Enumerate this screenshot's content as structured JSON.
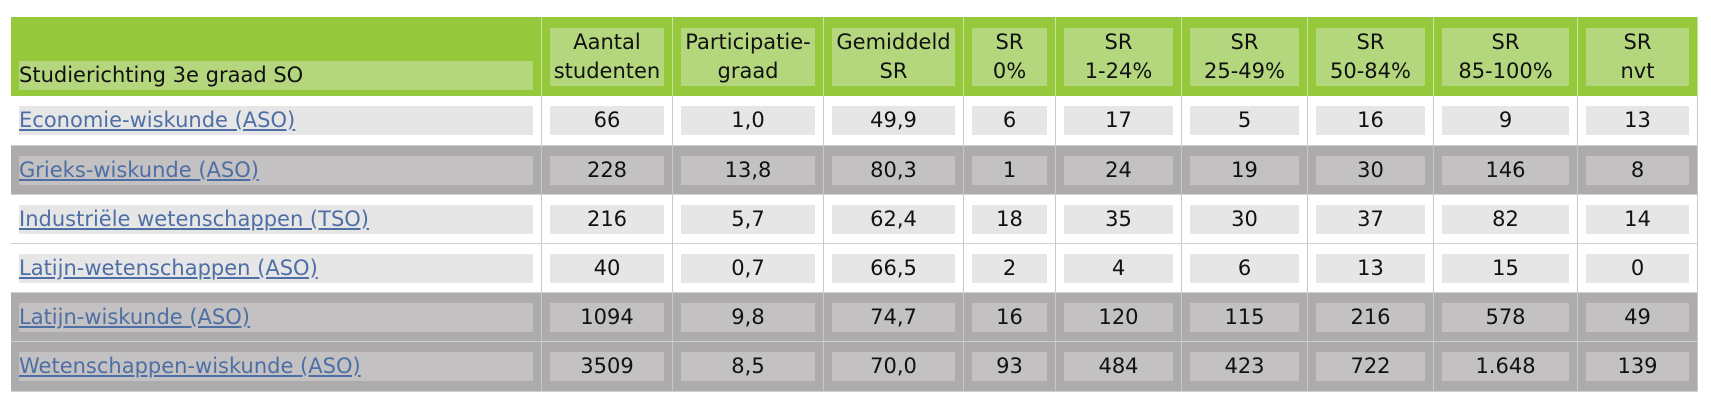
{
  "table": {
    "header": [
      [
        "Studierichting 3e graad SO"
      ],
      [
        "Aantal",
        "studenten"
      ],
      [
        "Participatie-",
        "graad"
      ],
      [
        "Gemiddeld",
        "SR"
      ],
      [
        "SR",
        "0%"
      ],
      [
        "SR",
        "1-24%"
      ],
      [
        "SR",
        "25-49%"
      ],
      [
        "SR",
        "50-84%"
      ],
      [
        "SR",
        "85-100%"
      ],
      [
        "SR",
        "nvt"
      ]
    ],
    "rows": [
      [
        "Economie-wiskunde (ASO)",
        "66",
        "1,0",
        "49,9",
        "6",
        "17",
        "5",
        "16",
        "9",
        "13"
      ],
      [
        "Grieks-wiskunde (ASO)",
        "228",
        "13,8",
        "80,3",
        "1",
        "24",
        "19",
        "30",
        "146",
        "8"
      ],
      [
        "Industriële wetenschappen (TSO)",
        "216",
        "5,7",
        "62,4",
        "18",
        "35",
        "30",
        "37",
        "82",
        "14"
      ],
      [
        "Latijn-wetenschappen (ASO)",
        "40",
        "0,7",
        "66,5",
        "2",
        "4",
        "6",
        "13",
        "15",
        "0"
      ],
      [
        "Latijn-wiskunde (ASO)",
        "1094",
        "9,8",
        "74,7",
        "16",
        "120",
        "115",
        "216",
        "578",
        "49"
      ],
      [
        "Wetenschappen-wiskunde (ASO)",
        "3509",
        "8,5",
        "70,0",
        "93",
        "484",
        "423",
        "722",
        "1.648",
        "139"
      ]
    ]
  }
}
